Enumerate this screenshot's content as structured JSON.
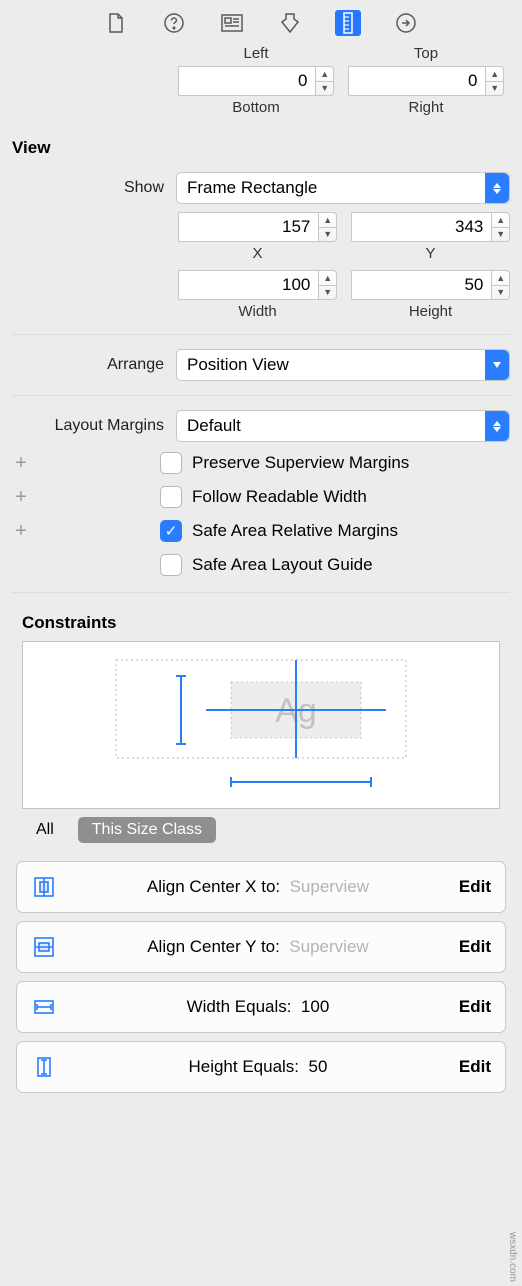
{
  "toolbar": {
    "selected_index": 4
  },
  "margins_top": {
    "left": {
      "value": "",
      "sublabel": "Left"
    },
    "top": {
      "value": "",
      "sublabel": "Top"
    },
    "bottom": {
      "value": "0",
      "sublabel": "Bottom"
    },
    "right": {
      "value": "0",
      "sublabel": "Right"
    }
  },
  "section_view": "View",
  "show": {
    "label": "Show",
    "selected": "Frame Rectangle"
  },
  "pos": {
    "x": {
      "value": "157",
      "sublabel": "X"
    },
    "y": {
      "value": "343",
      "sublabel": "Y"
    }
  },
  "size": {
    "w": {
      "value": "100",
      "sublabel": "Width"
    },
    "h": {
      "value": "50",
      "sublabel": "Height"
    }
  },
  "arrange": {
    "label": "Arrange",
    "selected": "Position View"
  },
  "layout_margins": {
    "label": "Layout Margins",
    "selected": "Default"
  },
  "checks": [
    {
      "label": "Preserve Superview Margins",
      "checked": false,
      "plus": true
    },
    {
      "label": "Follow Readable Width",
      "checked": false,
      "plus": true
    },
    {
      "label": "Safe Area Relative Margins",
      "checked": true,
      "plus": true
    },
    {
      "label": "Safe Area Layout Guide",
      "checked": false,
      "plus": false
    }
  ],
  "constraints_h": "Constraints",
  "filter": {
    "all": "All",
    "pill": "This Size Class"
  },
  "diagram": {
    "placeholder": "Ag",
    "line_color": "#2a7dff",
    "box_fill": "#ededed",
    "dotted": "#c4c4c4"
  },
  "constraints": [
    {
      "icon_color": "#2a7dff",
      "label": "Align Center X to:",
      "target": "Superview",
      "edit": "Edit",
      "icon": "centerX"
    },
    {
      "icon_color": "#2a7dff",
      "label": "Align Center Y to:",
      "target": "Superview",
      "edit": "Edit",
      "icon": "centerY"
    },
    {
      "icon_color": "#2a7dff",
      "label": "Width Equals:",
      "target": "100",
      "edit": "Edit",
      "icon": "width"
    },
    {
      "icon_color": "#2a7dff",
      "label": "Height Equals:",
      "target": "50",
      "edit": "Edit",
      "icon": "height"
    }
  ],
  "watermark": "wsxdn.com"
}
